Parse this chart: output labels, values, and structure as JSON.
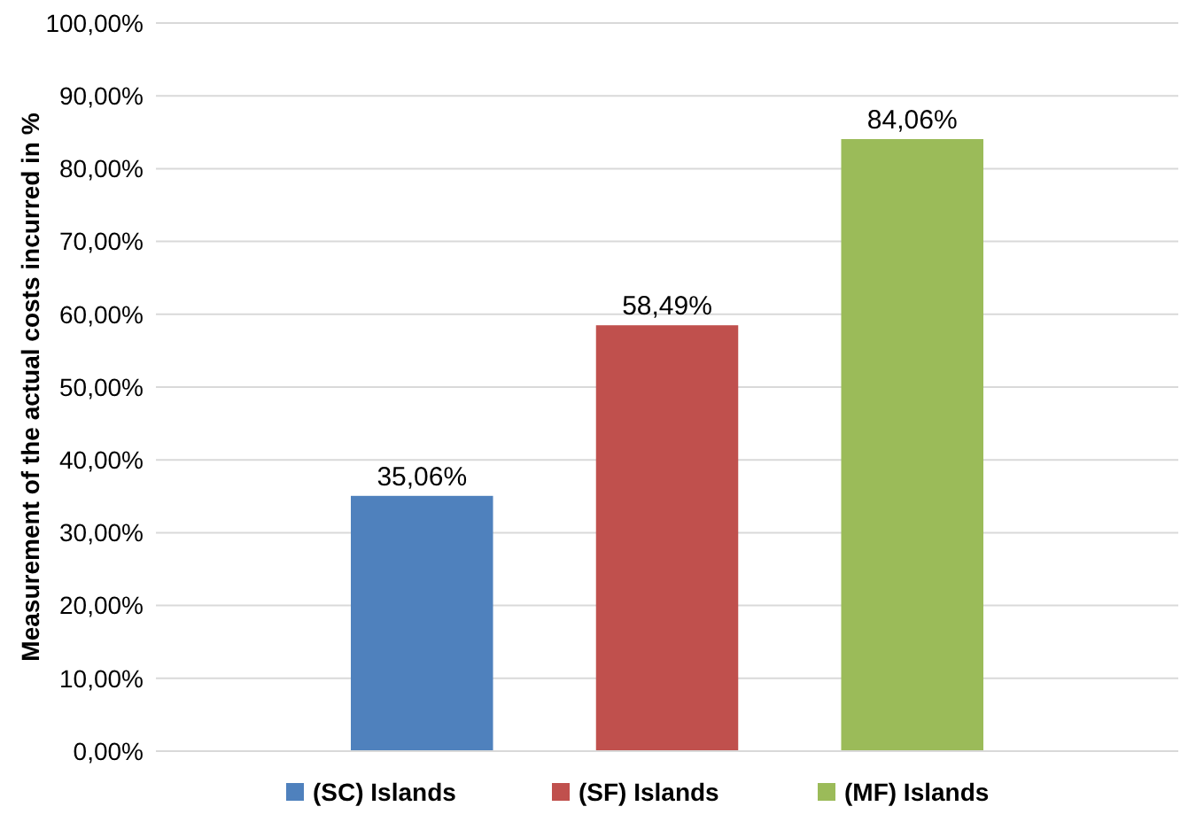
{
  "chart_data": {
    "type": "bar",
    "ylabel": "Measurement of the actual costs incurred in %",
    "categories": [
      null
    ],
    "series": [
      {
        "name": "(SC) Islands",
        "color": "#4f81bd",
        "values": [
          35.06
        ],
        "value_labels": [
          "35,06%"
        ]
      },
      {
        "name": "(SF) Islands",
        "color": "#c0504d",
        "values": [
          58.49
        ],
        "value_labels": [
          "58,49%"
        ]
      },
      {
        "name": "(MF) Islands",
        "color": "#9bbb59",
        "values": [
          84.06
        ],
        "value_labels": [
          "84,06%"
        ]
      }
    ],
    "ylim": [
      0,
      100
    ],
    "yticks": [
      {
        "value": 0,
        "label": "0,00%"
      },
      {
        "value": 10,
        "label": "10,00%"
      },
      {
        "value": 20,
        "label": "20,00%"
      },
      {
        "value": 30,
        "label": "30,00%"
      },
      {
        "value": 40,
        "label": "40,00%"
      },
      {
        "value": 50,
        "label": "50,00%"
      },
      {
        "value": 60,
        "label": "60,00%"
      },
      {
        "value": 70,
        "label": "70,00%"
      },
      {
        "value": 80,
        "label": "80,00%"
      },
      {
        "value": 90,
        "label": "90,00%"
      },
      {
        "value": 100,
        "label": "100,00%"
      }
    ],
    "grid": "y",
    "legend": "bottom"
  }
}
